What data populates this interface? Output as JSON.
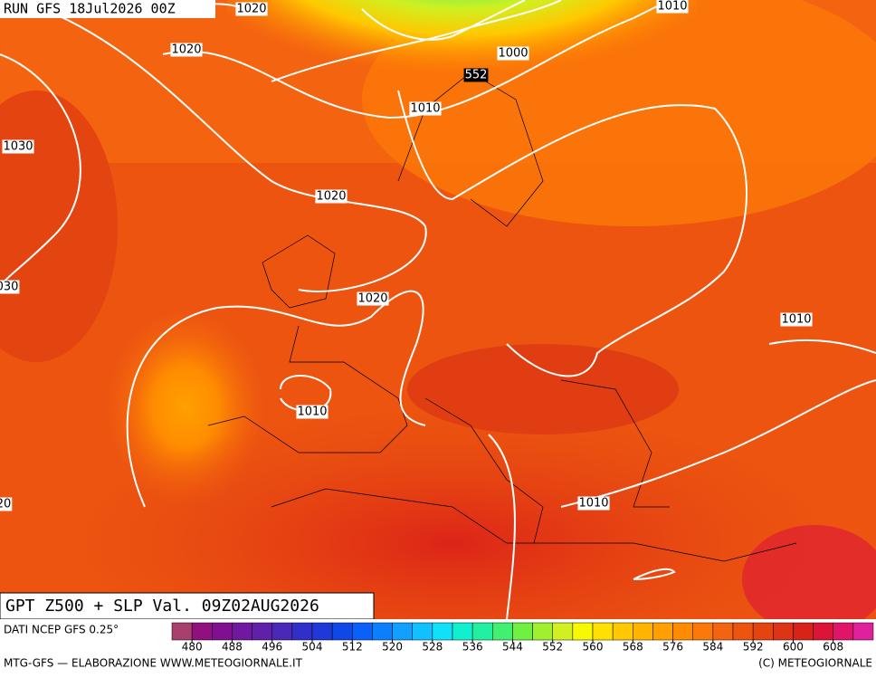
{
  "header": {
    "run": "RUN GFS 18Jul2026 00Z"
  },
  "isobar_labels": [
    "1020",
    "1020",
    "1010",
    "1000",
    "552",
    "1010",
    "1030",
    "1020",
    "030",
    "1020",
    "1010",
    "1010",
    "1010",
    "20"
  ],
  "footer": {
    "title": "GPT Z500 + SLP Val. 09Z02AUG2026",
    "source": "DATI NCEP GFS 0.25°",
    "credit": "MTG-GFS — ELABORAZIONE WWW.METEOGIORNALE.IT",
    "copyright": "(C) METEOGIORNALE"
  },
  "colorbar": {
    "range": [
      476,
      616
    ],
    "ticks": [
      480,
      488,
      496,
      504,
      512,
      520,
      528,
      536,
      544,
      552,
      560,
      568,
      576,
      584,
      592,
      600,
      608
    ],
    "colors": [
      "#a8406c",
      "#90107f",
      "#80108f",
      "#70189f",
      "#6020aa",
      "#4a28b8",
      "#3030c8",
      "#2038d8",
      "#1048e8",
      "#0a60f8",
      "#0a80ff",
      "#10a0ff",
      "#10c0ff",
      "#10e0f8",
      "#10f0d0",
      "#20f0a0",
      "#40f070",
      "#70f040",
      "#a0f030",
      "#d0f020",
      "#f8f800",
      "#ffe000",
      "#ffc800",
      "#ffb400",
      "#ffa000",
      "#ff8c00",
      "#fc7808",
      "#f46410",
      "#ec5410",
      "#e44410",
      "#dc3414",
      "#d82418",
      "#dc1438",
      "#e01468",
      "#e0209c"
    ]
  }
}
